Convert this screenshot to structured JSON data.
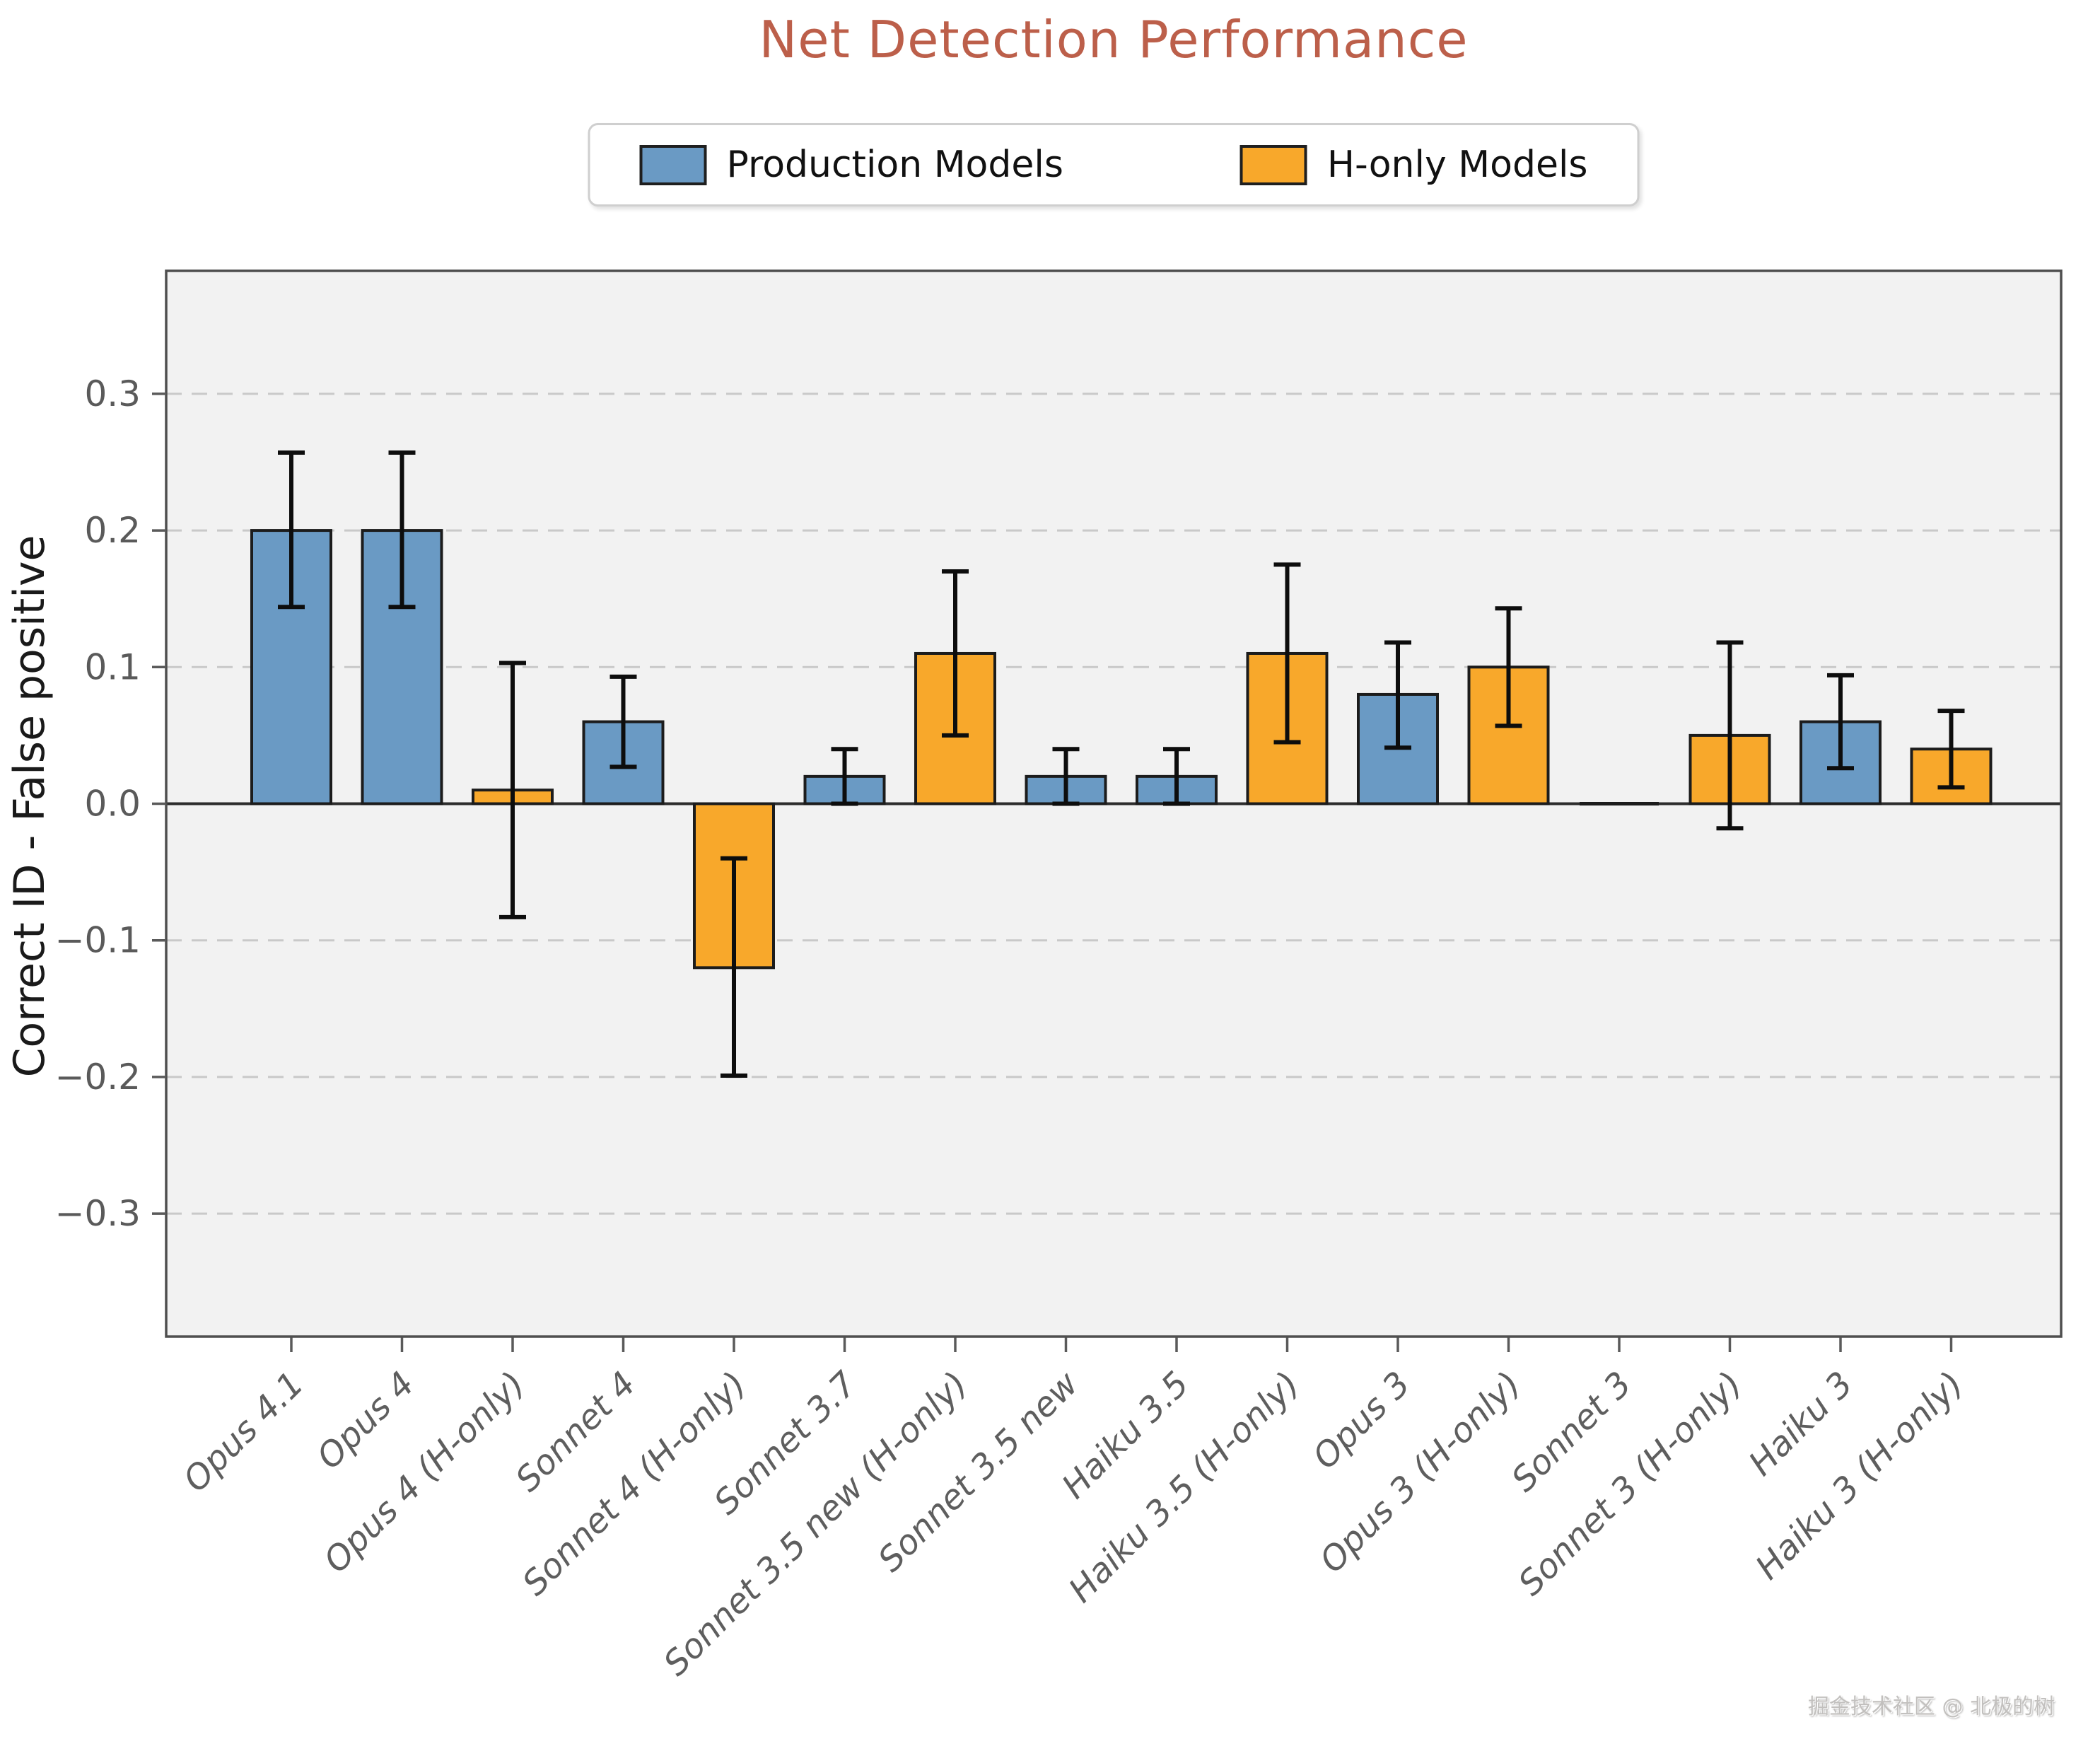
{
  "watermark": "掘金技术社区 @ 北极的树",
  "colors": {
    "title": "#BC5F4A",
    "production_blue": "#6A9AC4",
    "h_only_orange": "#F8A82B",
    "bar_edge": "#1C1C1C",
    "error_bar": "#0D0D0D",
    "plot_bg": "#F2F2F2",
    "page_bg": "#FFFFFF",
    "grid": "#C9C9C9",
    "zero_line": "#2D2D2D",
    "spine": "#4F4F4F",
    "tick": "#5A5A5A",
    "tick_label": "#5A5A5A",
    "x_label": "#5E5E5E",
    "watermark": "#C2C0BE"
  },
  "chart_data": {
    "type": "bar",
    "title": "Net Detection Performance",
    "xlabel": "",
    "ylabel": "Correct ID - False positive",
    "ylim": [
      -0.39,
      0.39
    ],
    "grid": "horizontal dashed gridlines every 0.1, solid line at 0",
    "legend_position": "top center",
    "legend": [
      {
        "label": "Production Models",
        "color": "#6A9AC4"
      },
      {
        "label": "H-only Models",
        "color": "#F8A82B"
      }
    ],
    "yticks": [
      {
        "value": 0.3,
        "label": "0.3"
      },
      {
        "value": 0.2,
        "label": "0.2"
      },
      {
        "value": 0.1,
        "label": "0.1"
      },
      {
        "value": 0.0,
        "label": "0.0"
      },
      {
        "value": -0.1,
        "label": "−0.1"
      },
      {
        "value": -0.2,
        "label": "−0.2"
      },
      {
        "value": -0.3,
        "label": "−0.3"
      }
    ],
    "categories": [
      "Opus 4.1",
      "Opus 4",
      "Opus 4 (H-only)",
      "Sonnet 4",
      "Sonnet 4 (H-only)",
      "Sonnet 3.7",
      "Sonnet 3.5 new (H-only)",
      "Sonnet 3.5 new",
      "Haiku 3.5",
      "Haiku 3.5 (H-only)",
      "Opus 3",
      "Opus 3 (H-only)",
      "Sonnet 3",
      "Sonnet 3 (H-only)",
      "Haiku 3",
      "Haiku 3 (H-only)"
    ],
    "bars": [
      {
        "label": "Opus 4.1",
        "group": "Production Models",
        "value": 0.2,
        "ci_low": 0.144,
        "ci_high": 0.257
      },
      {
        "label": "Opus 4",
        "group": "Production Models",
        "value": 0.2,
        "ci_low": 0.144,
        "ci_high": 0.257
      },
      {
        "label": "Opus 4 (H-only)",
        "group": "H-only Models",
        "value": 0.01,
        "ci_low": -0.083,
        "ci_high": 0.103
      },
      {
        "label": "Sonnet 4",
        "group": "Production Models",
        "value": 0.06,
        "ci_low": 0.027,
        "ci_high": 0.093
      },
      {
        "label": "Sonnet 4 (H-only)",
        "group": "H-only Models",
        "value": -0.12,
        "ci_low": -0.199,
        "ci_high": -0.04
      },
      {
        "label": "Sonnet 3.7",
        "group": "Production Models",
        "value": 0.02,
        "ci_low": 0.0,
        "ci_high": 0.04
      },
      {
        "label": "Sonnet 3.5 new (H-only)",
        "group": "H-only Models",
        "value": 0.11,
        "ci_low": 0.05,
        "ci_high": 0.17
      },
      {
        "label": "Sonnet 3.5 new",
        "group": "Production Models",
        "value": 0.02,
        "ci_low": 0.0,
        "ci_high": 0.04
      },
      {
        "label": "Haiku 3.5",
        "group": "Production Models",
        "value": 0.02,
        "ci_low": 0.0,
        "ci_high": 0.04
      },
      {
        "label": "Haiku 3.5 (H-only)",
        "group": "H-only Models",
        "value": 0.11,
        "ci_low": 0.045,
        "ci_high": 0.175
      },
      {
        "label": "Opus 3",
        "group": "Production Models",
        "value": 0.08,
        "ci_low": 0.041,
        "ci_high": 0.118
      },
      {
        "label": "Opus 3 (H-only)",
        "group": "H-only Models",
        "value": 0.1,
        "ci_low": 0.057,
        "ci_high": 0.143
      },
      {
        "label": "Sonnet 3",
        "group": "Production Models",
        "value": 0.0,
        "ci_low": null,
        "ci_high": null
      },
      {
        "label": "Sonnet 3 (H-only)",
        "group": "H-only Models",
        "value": 0.05,
        "ci_low": -0.018,
        "ci_high": 0.118
      },
      {
        "label": "Haiku 3",
        "group": "Production Models",
        "value": 0.06,
        "ci_low": 0.026,
        "ci_high": 0.094
      },
      {
        "label": "Haiku 3 (H-only)",
        "group": "H-only Models",
        "value": 0.04,
        "ci_low": 0.012,
        "ci_high": 0.068
      }
    ]
  }
}
